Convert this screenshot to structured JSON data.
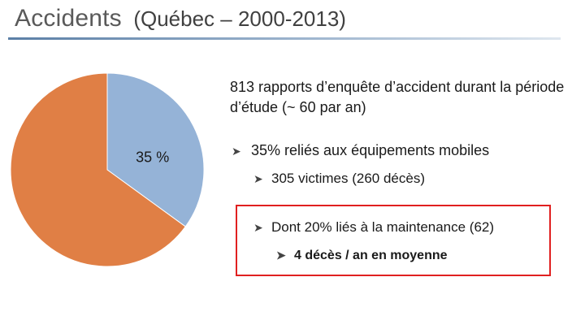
{
  "header": {
    "title": "Accidents",
    "subtitle": "(Québec – 2000-2013)"
  },
  "chart_data": {
    "type": "pie",
    "values": [
      35,
      65
    ],
    "colors": [
      "#95b3d7",
      "#e07f45"
    ],
    "data_labels": [
      "35 %",
      ""
    ],
    "start_angle_deg": 0
  },
  "content": {
    "intro": "813 rapports d’enquête d’accident durant la période d’étude (~ 60 par an)",
    "bullets": [
      {
        "text": "35% reliés aux équipements mobiles"
      },
      {
        "text": "305 victimes (260 décès)"
      },
      {
        "text": "Dont 20% liés à la maintenance (62)"
      },
      {
        "text": "4 décès / an en moyenne"
      }
    ]
  },
  "colors": {
    "highlight_border": "#e02020",
    "title_rule": "#5b7fa6"
  },
  "icons": {
    "bullet": "arrowhead-bullet-icon"
  }
}
